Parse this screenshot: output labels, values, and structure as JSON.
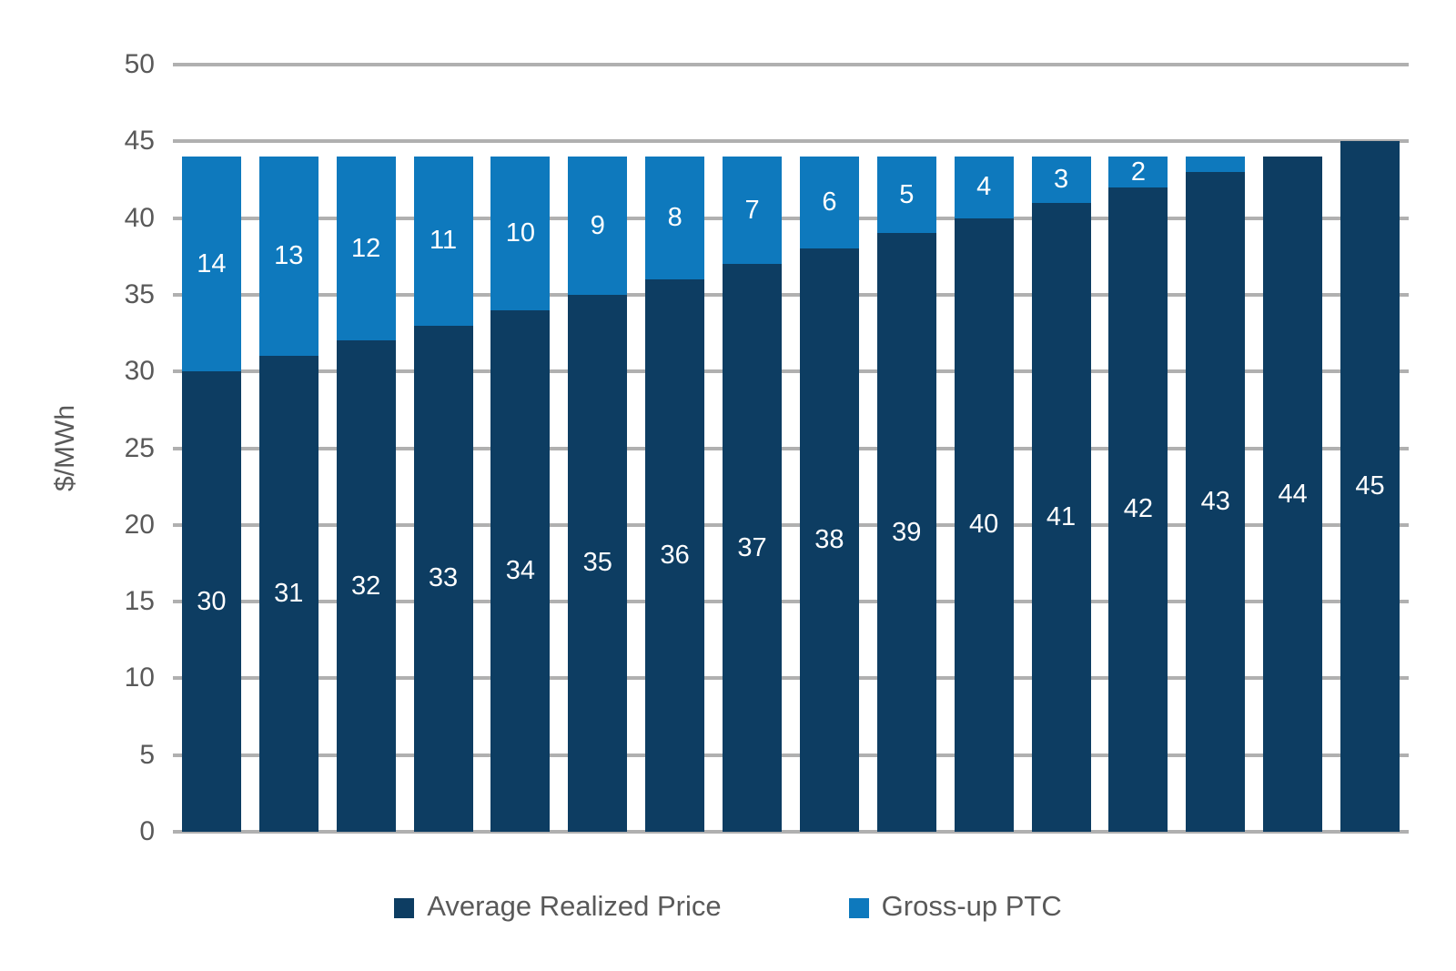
{
  "chart_data": {
    "type": "bar",
    "stacked": true,
    "ylabel": "$/MWh",
    "ylim": [
      0,
      50
    ],
    "yticks": [
      0,
      5,
      10,
      15,
      20,
      25,
      30,
      35,
      40,
      45,
      50
    ],
    "grid": "horizontal",
    "legend_position": "bottom-center",
    "series": [
      {
        "name": "Average Realized Price",
        "color": "#0d3d62",
        "values": [
          30,
          31,
          32,
          33,
          34,
          35,
          36,
          37,
          38,
          39,
          40,
          41,
          42,
          43,
          44,
          45
        ],
        "labels": [
          "30",
          "31",
          "32",
          "33",
          "34",
          "35",
          "36",
          "37",
          "38",
          "39",
          "40",
          "41",
          "42",
          "43",
          "44",
          "45"
        ]
      },
      {
        "name": "Gross-up PTC",
        "color": "#0e79bd",
        "values": [
          14,
          13,
          12,
          11,
          10,
          9,
          8,
          7,
          6,
          5,
          4,
          3,
          2,
          1,
          0,
          0
        ],
        "labels": [
          "14",
          "13",
          "12",
          "11",
          "10",
          "9",
          "8",
          "7",
          "6",
          "5",
          "4",
          "3",
          "2",
          "",
          "",
          ""
        ]
      }
    ],
    "colors": {
      "bar_label_text": "#ffffff",
      "axis_text": "#595959",
      "gridline": "#b0b0b0",
      "background": "#ffffff"
    }
  }
}
